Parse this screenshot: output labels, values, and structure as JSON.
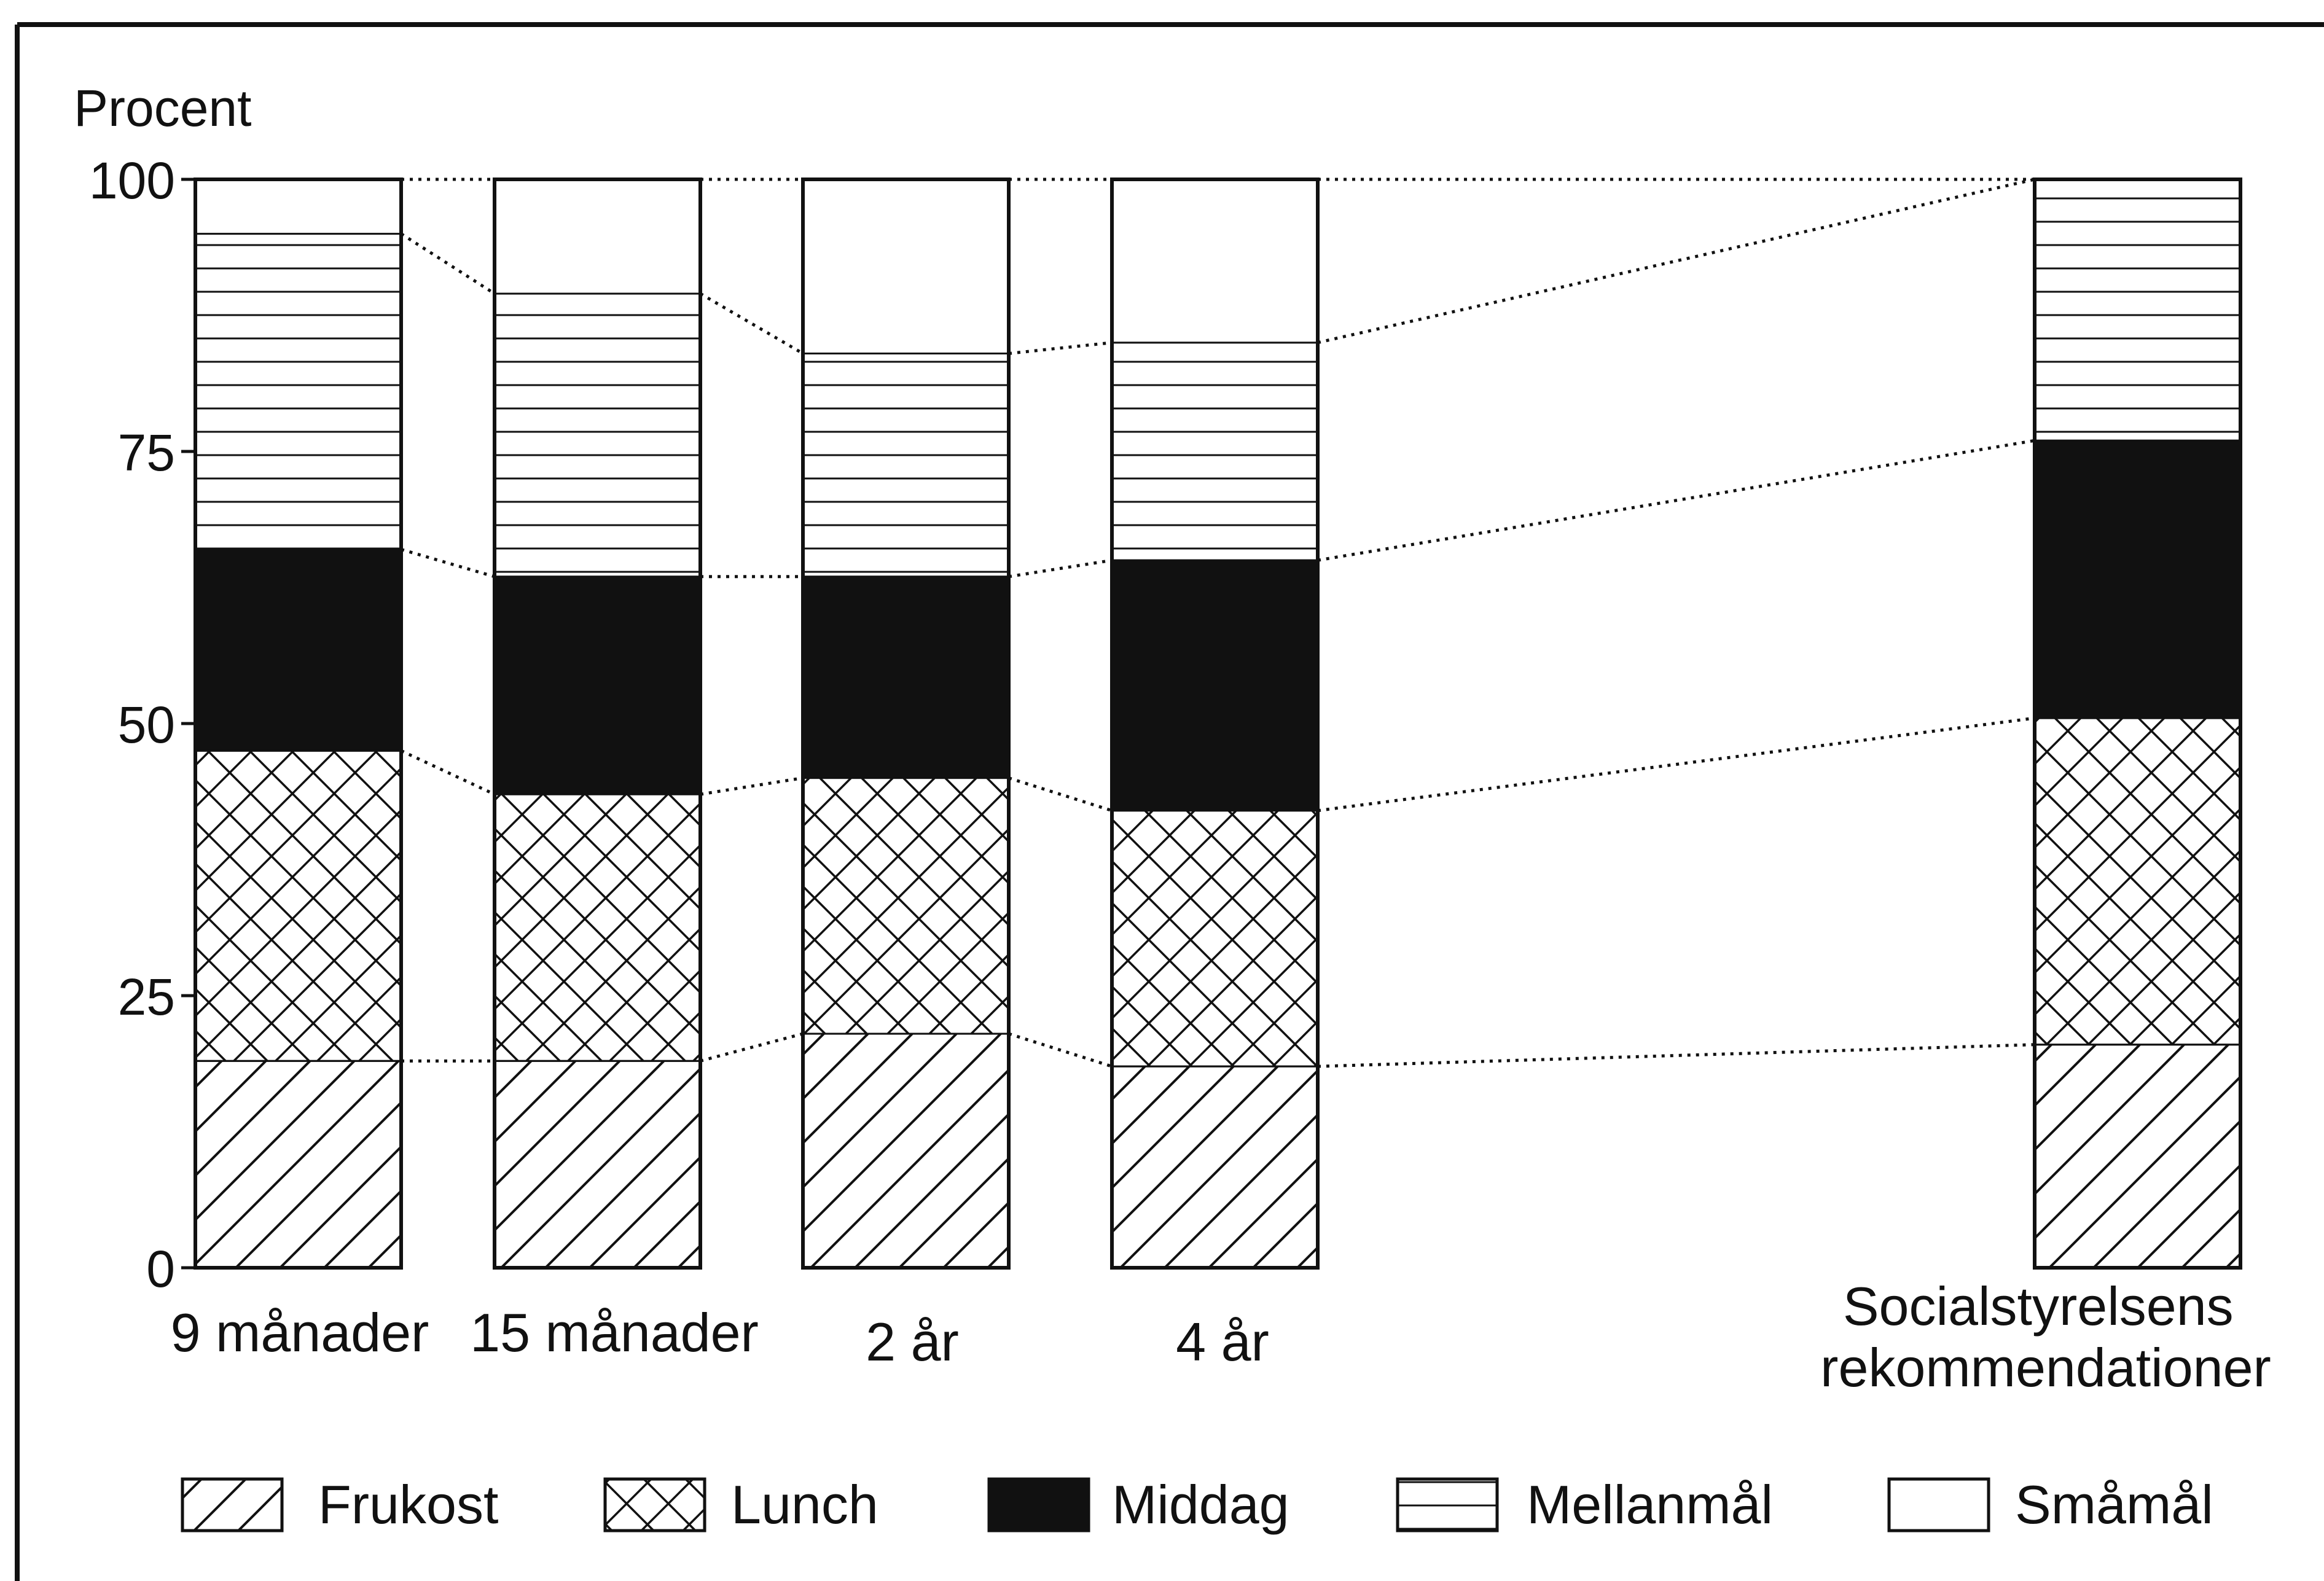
{
  "chart_data": {
    "type": "bar",
    "stacked": true,
    "ylabel": "Procent",
    "ylim": [
      0,
      100
    ],
    "yticks": [
      "0",
      "25",
      "50",
      "75",
      "100"
    ],
    "categories": [
      [
        "9 månader"
      ],
      [
        "15 månader"
      ],
      [
        "2 år"
      ],
      [
        "4 år"
      ],
      [
        "Socialstyrelsens",
        "rekommendationer"
      ]
    ],
    "series": [
      {
        "name": "Frukost",
        "pattern": "diagonal",
        "values": [
          19,
          19,
          21.5,
          18.5,
          20.5
        ]
      },
      {
        "name": "Lunch",
        "pattern": "crosshatch",
        "values": [
          28.5,
          24.5,
          23.5,
          23.5,
          30
        ]
      },
      {
        "name": "Middag",
        "pattern": "solid",
        "values": [
          18.5,
          20,
          18.5,
          23,
          25.5
        ]
      },
      {
        "name": "Mellanmål",
        "pattern": "horizontal",
        "values": [
          29,
          26,
          20.5,
          20,
          24
        ]
      },
      {
        "name": "Småmål",
        "pattern": "empty",
        "values": [
          5,
          10.5,
          16,
          15,
          0
        ]
      }
    ],
    "legend_position": "bottom",
    "connector_lines": "dotted"
  },
  "colors": {
    "ink": "#111111",
    "paper": "#ffffff"
  }
}
